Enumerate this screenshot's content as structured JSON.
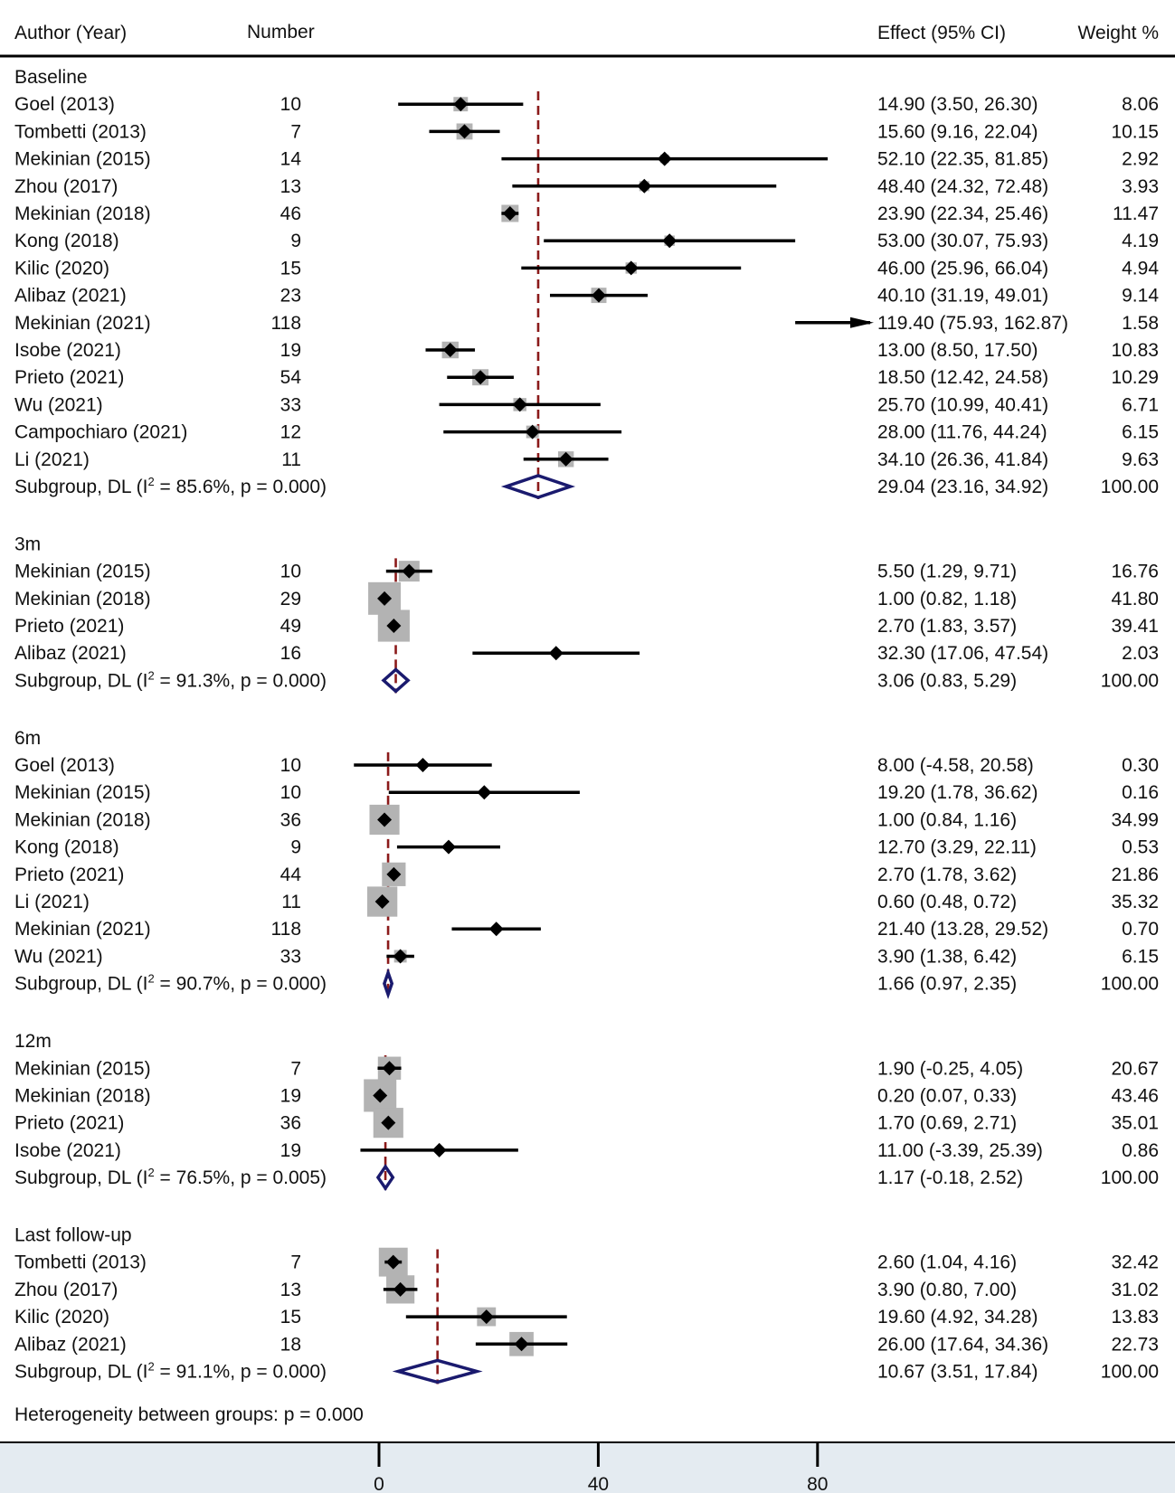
{
  "chart_data": {
    "type": "forest",
    "headers": {
      "study": "Author (Year)",
      "number": "Number",
      "effect": "Effect (95% CI)",
      "weight": "Weight %"
    },
    "axis": {
      "ticks": [
        0,
        40,
        80
      ],
      "tick_labels": [
        "0",
        "40",
        "80"
      ]
    },
    "footer": "Heterogeneity between groups: p = 0.000",
    "groups": [
      {
        "name": "Baseline",
        "studies": [
          {
            "study": "Goel (2013)",
            "n": "10",
            "est": 14.9,
            "lo": 3.5,
            "hi": 26.3,
            "effect": "14.90 (3.50, 26.30)",
            "weight": "8.06"
          },
          {
            "study": "Tombetti (2013)",
            "n": "7",
            "est": 15.6,
            "lo": 9.16,
            "hi": 22.04,
            "effect": "15.60 (9.16, 22.04)",
            "weight": "10.15"
          },
          {
            "study": "Mekinian (2015)",
            "n": "14",
            "est": 52.1,
            "lo": 22.35,
            "hi": 81.85,
            "effect": "52.10 (22.35, 81.85)",
            "weight": "2.92"
          },
          {
            "study": "Zhou (2017)",
            "n": "13",
            "est": 48.4,
            "lo": 24.32,
            "hi": 72.48,
            "effect": "48.40 (24.32, 72.48)",
            "weight": "3.93"
          },
          {
            "study": "Mekinian (2018)",
            "n": "46",
            "est": 23.9,
            "lo": 22.34,
            "hi": 25.46,
            "effect": "23.90 (22.34, 25.46)",
            "weight": "11.47"
          },
          {
            "study": "Kong (2018)",
            "n": "9",
            "est": 53.0,
            "lo": 30.07,
            "hi": 75.93,
            "effect": "53.00 (30.07, 75.93)",
            "weight": "4.19"
          },
          {
            "study": "Kilic (2020)",
            "n": "15",
            "est": 46.0,
            "lo": 25.96,
            "hi": 66.04,
            "effect": "46.00 (25.96, 66.04)",
            "weight": "4.94"
          },
          {
            "study": "Alibaz (2021)",
            "n": "23",
            "est": 40.1,
            "lo": 31.19,
            "hi": 49.01,
            "effect": "40.10 (31.19, 49.01)",
            "weight": "9.14"
          },
          {
            "study": "Mekinian (2021)",
            "n": "118",
            "est": 119.4,
            "lo": 75.93,
            "hi": 162.87,
            "effect": "119.40 (75.93, 162.87)",
            "weight": "1.58",
            "arrow": true
          },
          {
            "study": "Isobe (2021)",
            "n": "19",
            "est": 13.0,
            "lo": 8.5,
            "hi": 17.5,
            "effect": "13.00 (8.50, 17.50)",
            "weight": "10.83"
          },
          {
            "study": "Prieto (2021)",
            "n": "54",
            "est": 18.5,
            "lo": 12.42,
            "hi": 24.58,
            "effect": "18.50 (12.42, 24.58)",
            "weight": "10.29"
          },
          {
            "study": "Wu (2021)",
            "n": "33",
            "est": 25.7,
            "lo": 10.99,
            "hi": 40.41,
            "effect": "25.70 (10.99, 40.41)",
            "weight": "6.71"
          },
          {
            "study": "Campochiaro (2021)",
            "n": "12",
            "est": 28.0,
            "lo": 11.76,
            "hi": 44.24,
            "effect": "28.00 (11.76, 44.24)",
            "weight": "6.15"
          },
          {
            "study": "Li (2021)",
            "n": "11",
            "est": 34.1,
            "lo": 26.36,
            "hi": 41.84,
            "effect": "34.10 (26.36, 41.84)",
            "weight": "9.63"
          }
        ],
        "subgroup": {
          "label_pre": "Subgroup, DL (I",
          "label_sup": "2",
          "label_post": " = 85.6%, p = 0.000)",
          "est": 29.04,
          "lo": 23.16,
          "hi": 34.92,
          "effect": "29.04 (23.16, 34.92)",
          "weight": "100.00"
        }
      },
      {
        "name": "3m",
        "studies": [
          {
            "study": "Mekinian (2015)",
            "n": "10",
            "est": 5.5,
            "lo": 1.29,
            "hi": 9.71,
            "effect": "5.50 (1.29, 9.71)",
            "weight": "16.76"
          },
          {
            "study": "Mekinian (2018)",
            "n": "29",
            "est": 1.0,
            "lo": 0.82,
            "hi": 1.18,
            "effect": "1.00 (0.82, 1.18)",
            "weight": "41.80"
          },
          {
            "study": "Prieto (2021)",
            "n": "49",
            "est": 2.7,
            "lo": 1.83,
            "hi": 3.57,
            "effect": "2.70 (1.83, 3.57)",
            "weight": "39.41"
          },
          {
            "study": "Alibaz (2021)",
            "n": "16",
            "est": 32.3,
            "lo": 17.06,
            "hi": 47.54,
            "effect": "32.30 (17.06, 47.54)",
            "weight": "2.03"
          }
        ],
        "subgroup": {
          "label_pre": "Subgroup, DL (I",
          "label_sup": "2",
          "label_post": " = 91.3%, p = 0.000)",
          "est": 3.06,
          "lo": 0.83,
          "hi": 5.29,
          "effect": "3.06 (0.83, 5.29)",
          "weight": "100.00"
        }
      },
      {
        "name": "6m",
        "studies": [
          {
            "study": "Goel (2013)",
            "n": "10",
            "est": 8.0,
            "lo": -4.58,
            "hi": 20.58,
            "effect": "8.00 (-4.58, 20.58)",
            "weight": "0.30"
          },
          {
            "study": "Mekinian (2015)",
            "n": "10",
            "est": 19.2,
            "lo": 1.78,
            "hi": 36.62,
            "effect": "19.20 (1.78, 36.62)",
            "weight": "0.16"
          },
          {
            "study": "Mekinian (2018)",
            "n": "36",
            "est": 1.0,
            "lo": 0.84,
            "hi": 1.16,
            "effect": "1.00 (0.84, 1.16)",
            "weight": "34.99"
          },
          {
            "study": "Kong (2018)",
            "n": "9",
            "est": 12.7,
            "lo": 3.29,
            "hi": 22.11,
            "effect": "12.70 (3.29, 22.11)",
            "weight": "0.53"
          },
          {
            "study": "Prieto (2021)",
            "n": "44",
            "est": 2.7,
            "lo": 1.78,
            "hi": 3.62,
            "effect": "2.70 (1.78, 3.62)",
            "weight": "21.86"
          },
          {
            "study": "Li (2021)",
            "n": "11",
            "est": 0.6,
            "lo": 0.48,
            "hi": 0.72,
            "effect": "0.60 (0.48, 0.72)",
            "weight": "35.32"
          },
          {
            "study": "Mekinian (2021)",
            "n": "118",
            "est": 21.4,
            "lo": 13.28,
            "hi": 29.52,
            "effect": "21.40 (13.28, 29.52)",
            "weight": "0.70"
          },
          {
            "study": "Wu (2021)",
            "n": "33",
            "est": 3.9,
            "lo": 1.38,
            "hi": 6.42,
            "effect": "3.90 (1.38, 6.42)",
            "weight": "6.15"
          }
        ],
        "subgroup": {
          "label_pre": "Subgroup, DL (I",
          "label_sup": "2",
          "label_post": " = 90.7%, p = 0.000)",
          "est": 1.66,
          "lo": 0.97,
          "hi": 2.35,
          "effect": "1.66 (0.97, 2.35)",
          "weight": "100.00"
        }
      },
      {
        "name": "12m",
        "studies": [
          {
            "study": "Mekinian (2015)",
            "n": "7",
            "est": 1.9,
            "lo": -0.25,
            "hi": 4.05,
            "effect": "1.90 (-0.25, 4.05)",
            "weight": "20.67"
          },
          {
            "study": "Mekinian (2018)",
            "n": "19",
            "est": 0.2,
            "lo": 0.07,
            "hi": 0.33,
            "effect": "0.20 (0.07, 0.33)",
            "weight": "43.46"
          },
          {
            "study": "Prieto (2021)",
            "n": "36",
            "est": 1.7,
            "lo": 0.69,
            "hi": 2.71,
            "effect": "1.70 (0.69, 2.71)",
            "weight": "35.01"
          },
          {
            "study": "Isobe (2021)",
            "n": "19",
            "est": 11.0,
            "lo": -3.39,
            "hi": 25.39,
            "effect": "11.00 (-3.39, 25.39)",
            "weight": "0.86"
          }
        ],
        "subgroup": {
          "label_pre": "Subgroup, DL (I",
          "label_sup": "2",
          "label_post": " = 76.5%, p = 0.005)",
          "est": 1.17,
          "lo": -0.18,
          "hi": 2.52,
          "effect": "1.17 (-0.18, 2.52)",
          "weight": "100.00"
        }
      },
      {
        "name": "Last follow-up",
        "studies": [
          {
            "study": "Tombetti (2013)",
            "n": "7",
            "est": 2.6,
            "lo": 1.04,
            "hi": 4.16,
            "effect": "2.60 (1.04, 4.16)",
            "weight": "32.42"
          },
          {
            "study": "Zhou (2017)",
            "n": "13",
            "est": 3.9,
            "lo": 0.8,
            "hi": 7.0,
            "effect": "3.90 (0.80, 7.00)",
            "weight": "31.02"
          },
          {
            "study": "Kilic (2020)",
            "n": "15",
            "est": 19.6,
            "lo": 4.92,
            "hi": 34.28,
            "effect": "19.60 (4.92, 34.28)",
            "weight": "13.83"
          },
          {
            "study": "Alibaz (2021)",
            "n": "18",
            "est": 26.0,
            "lo": 17.64,
            "hi": 34.36,
            "effect": "26.00 (17.64, 34.36)",
            "weight": "22.73"
          }
        ],
        "subgroup": {
          "label_pre": "Subgroup, DL (I",
          "label_sup": "2",
          "label_post": " = 91.1%, p = 0.000)",
          "est": 10.67,
          "lo": 3.51,
          "hi": 17.84,
          "effect": "10.67 (3.51, 17.84)",
          "weight": "100.00"
        }
      }
    ]
  },
  "colors": {
    "ci_line": "#000000",
    "marker": "#000000",
    "weight_box": "#b3b3b3",
    "diamond": "#1a1a6e",
    "ref_line": "#8b1a1a",
    "axis_band": "#e4ebf1"
  }
}
